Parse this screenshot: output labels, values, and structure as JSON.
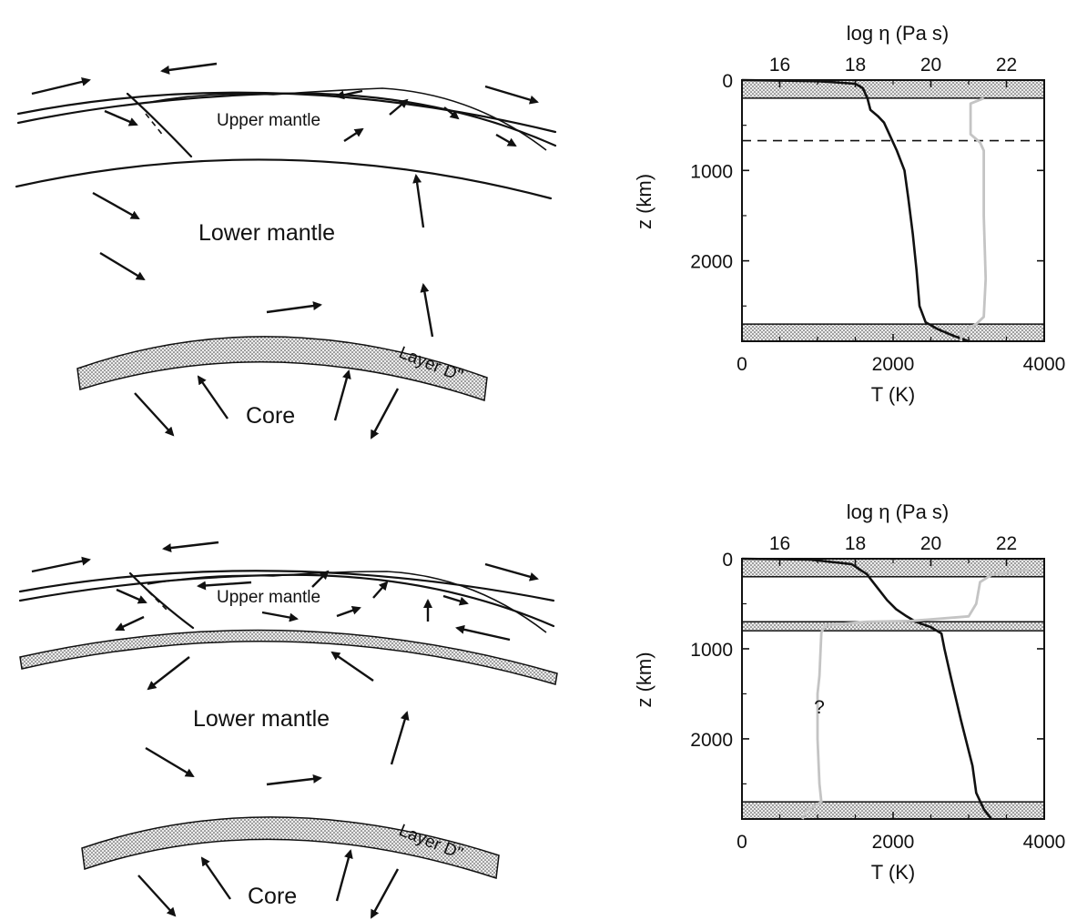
{
  "colors": {
    "ink": "#111111",
    "viscosity_curve": "#c4c4c4",
    "stipple_fill": "#e7e7e7",
    "background": "#ffffff"
  },
  "diagram": {
    "top": {
      "upper_mantle": "Upper mantle",
      "lower_mantle": "Lower mantle",
      "layer": "Layer D''",
      "core": "Core"
    },
    "bottom": {
      "upper_mantle": "Upper mantle",
      "lower_mantle": "Lower mantle",
      "layer": "Layer D''",
      "core": "Core"
    }
  },
  "chart_data": [
    {
      "type": "line",
      "top_axis_label": "log η (Pa s)",
      "top_ticks": [
        "16",
        "18",
        "20",
        "22"
      ],
      "top_range": [
        15,
        23
      ],
      "xlabel": "T (K)",
      "x_ticks": [
        "0",
        "2000",
        "4000"
      ],
      "xlim": [
        0,
        4000
      ],
      "ylabel": "z (km)",
      "y_ticks": [
        "0",
        "1000",
        "2000"
      ],
      "ylim": [
        0,
        2890
      ],
      "y_inverted": true,
      "boundary_layers_km": [
        [
          0,
          200
        ],
        [
          2700,
          2890
        ]
      ],
      "dashed_line_km": 670,
      "series": [
        {
          "quantity": "T",
          "points": [
            [
              0,
              0
            ],
            [
              1000,
              12
            ],
            [
              1500,
              40
            ],
            [
              1600,
              90
            ],
            [
              1660,
              200
            ],
            [
              1700,
              330
            ],
            [
              1800,
              400
            ],
            [
              1880,
              470
            ],
            [
              1950,
              600
            ],
            [
              2050,
              780
            ],
            [
              2150,
              1000
            ],
            [
              2200,
              1300
            ],
            [
              2260,
              1700
            ],
            [
              2310,
              2100
            ],
            [
              2350,
              2500
            ],
            [
              2430,
              2680
            ],
            [
              2600,
              2760
            ],
            [
              2800,
              2830
            ],
            [
              3000,
              2890
            ]
          ]
        },
        {
          "quantity": "log_eta",
          "points": [
            [
              21.4,
              200
            ],
            [
              21.05,
              260
            ],
            [
              21.05,
              450
            ],
            [
              21.05,
              600
            ],
            [
              21.3,
              690
            ],
            [
              21.4,
              780
            ],
            [
              21.4,
              1500
            ],
            [
              21.45,
              2200
            ],
            [
              21.4,
              2620
            ],
            [
              21.2,
              2700
            ],
            [
              20.8,
              2790
            ],
            [
              20.8,
              2890
            ]
          ]
        }
      ]
    },
    {
      "type": "line",
      "top_axis_label": "log η (Pa s)",
      "top_ticks": [
        "16",
        "18",
        "20",
        "22"
      ],
      "top_range": [
        15,
        23
      ],
      "xlabel": "T (K)",
      "x_ticks": [
        "0",
        "2000",
        "4000"
      ],
      "xlim": [
        0,
        4000
      ],
      "ylabel": "z (km)",
      "y_ticks": [
        "0",
        "1000",
        "2000"
      ],
      "ylim": [
        0,
        2890
      ],
      "y_inverted": true,
      "boundary_layers_km": [
        [
          0,
          200
        ],
        [
          700,
          800
        ],
        [
          2700,
          2890
        ]
      ],
      "annotation": "?",
      "series": [
        {
          "quantity": "T",
          "points": [
            [
              0,
              0
            ],
            [
              900,
              10
            ],
            [
              1450,
              60
            ],
            [
              1650,
              170
            ],
            [
              1800,
              330
            ],
            [
              1920,
              460
            ],
            [
              2040,
              560
            ],
            [
              2180,
              640
            ],
            [
              2300,
              700
            ],
            [
              2500,
              760
            ],
            [
              2640,
              830
            ],
            [
              2680,
              1000
            ],
            [
              2760,
              1300
            ],
            [
              2900,
              1800
            ],
            [
              3050,
              2300
            ],
            [
              3100,
              2600
            ],
            [
              3200,
              2780
            ],
            [
              3300,
              2890
            ]
          ]
        },
        {
          "quantity": "log_eta",
          "points": [
            [
              22.6,
              120
            ],
            [
              21.6,
              180
            ],
            [
              21.3,
              260
            ],
            [
              21.2,
              500
            ],
            [
              21.0,
              640
            ],
            [
              19.5,
              690
            ],
            [
              18.3,
              700
            ],
            [
              17.2,
              740
            ],
            [
              17.1,
              820
            ],
            [
              17.05,
              1300
            ],
            [
              17.0,
              1500
            ],
            [
              17.0,
              2000
            ],
            [
              17.05,
              2500
            ],
            [
              17.1,
              2700
            ],
            [
              16.7,
              2800
            ],
            [
              16.6,
              2890
            ]
          ]
        }
      ]
    }
  ]
}
